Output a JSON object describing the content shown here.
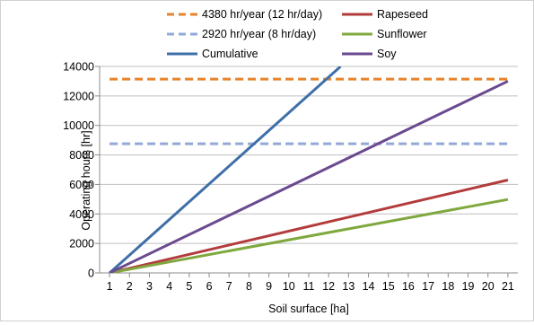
{
  "chart_data": {
    "type": "line",
    "title": "",
    "xlabel": "Soil surface [ha]",
    "ylabel": "Operating hours [hr]",
    "xlim": [
      1,
      21
    ],
    "ylim": [
      0,
      14000
    ],
    "x_ticks": [
      1,
      2,
      3,
      4,
      5,
      6,
      7,
      8,
      9,
      10,
      11,
      12,
      13,
      14,
      15,
      16,
      17,
      18,
      19,
      20,
      21
    ],
    "y_ticks": [
      0,
      2000,
      4000,
      6000,
      8000,
      10000,
      12000,
      14000
    ],
    "grid": "horizontal",
    "legend_position": "top",
    "series": [
      {
        "name": "4380 hr/year (12 hr/day)",
        "color": "#e8832a",
        "dash": true,
        "x": [
          1,
          21
        ],
        "y": [
          13140,
          13140
        ]
      },
      {
        "name": "Rapeseed",
        "color": "#b33b3b",
        "dash": false,
        "x": [
          1,
          21
        ],
        "y": [
          0,
          6300
        ]
      },
      {
        "name": "2920 hr/year  (8 hr/day)",
        "color": "#92a9d8",
        "dash": true,
        "x": [
          1,
          21
        ],
        "y": [
          8760,
          8760
        ]
      },
      {
        "name": "Sunflower",
        "color": "#7fa83e",
        "dash": false,
        "x": [
          1,
          21
        ],
        "y": [
          0,
          4980
        ]
      },
      {
        "name": "Cumulative",
        "color": "#3f6fa8",
        "dash": false,
        "x": [
          1,
          12.6
        ],
        "y": [
          0,
          14000
        ]
      },
      {
        "name": "Soy",
        "color": "#6b4a90",
        "dash": false,
        "x": [
          1,
          21
        ],
        "y": [
          0,
          13000
        ]
      }
    ]
  }
}
